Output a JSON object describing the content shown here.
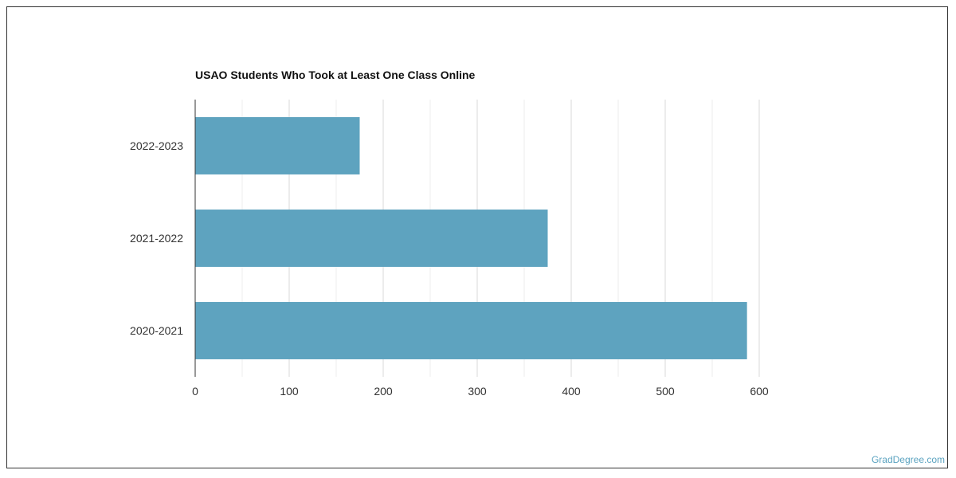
{
  "chart_data": {
    "type": "bar",
    "orientation": "horizontal",
    "title": "USAO Students Who Took at Least One Class Online",
    "categories": [
      "2022-2023",
      "2021-2022",
      "2020-2021"
    ],
    "values": [
      175,
      375,
      587
    ],
    "xlabel": "",
    "ylabel": "",
    "xlim": [
      0,
      600
    ],
    "x_ticks": [
      0,
      100,
      200,
      300,
      400,
      500,
      600
    ],
    "grid": true,
    "bar_color": "#5ea3bf",
    "grid_color": "#d9d9d9",
    "minor_grid_color": "#ececec"
  },
  "watermark": "GradDegree.com"
}
